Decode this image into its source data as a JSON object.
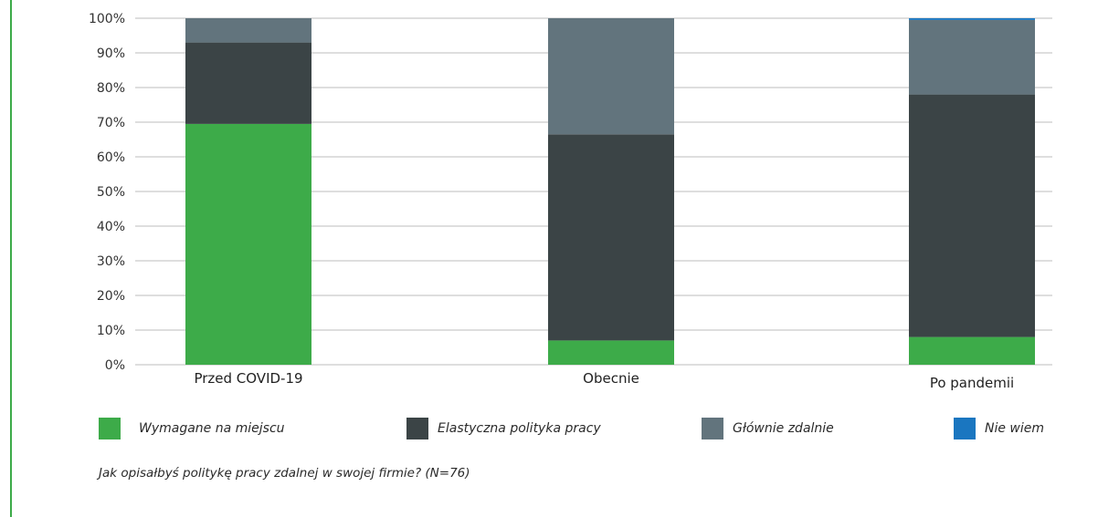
{
  "colors": {
    "accent_rule": "#3dab49",
    "gridline": "#bdbdbd"
  },
  "chart_data": {
    "type": "bar",
    "stacked": true,
    "categories": [
      "Przed COVID-19",
      "Obecnie",
      "Po pandemii"
    ],
    "series": [
      {
        "name": "Wymagane na miejscu",
        "color": "#3dab49",
        "values": [
          69.5,
          7,
          8
        ]
      },
      {
        "name": "Elastyczna polityka pracy",
        "color": "#3b4446",
        "values": [
          23.5,
          59.5,
          70
        ]
      },
      {
        "name": "Głównie zdalnie",
        "color": "#62747d",
        "values": [
          7,
          33.5,
          21.5
        ]
      },
      {
        "name": "Nie wiem",
        "color": "#1a76c0",
        "values": [
          0,
          0,
          0.5
        ]
      }
    ],
    "ylim": [
      0,
      100
    ],
    "yticks": [
      "0%",
      "10%",
      "20%",
      "30%",
      "40%",
      "50%",
      "60%",
      "70%",
      "80%",
      "90%",
      "100%"
    ],
    "grid": true,
    "legend_position": "bottom",
    "xlabel": "",
    "ylabel": ""
  },
  "footnote": "Jak opisałbyś politykę pracy zdalnej w swojej firmie? (N=76)"
}
